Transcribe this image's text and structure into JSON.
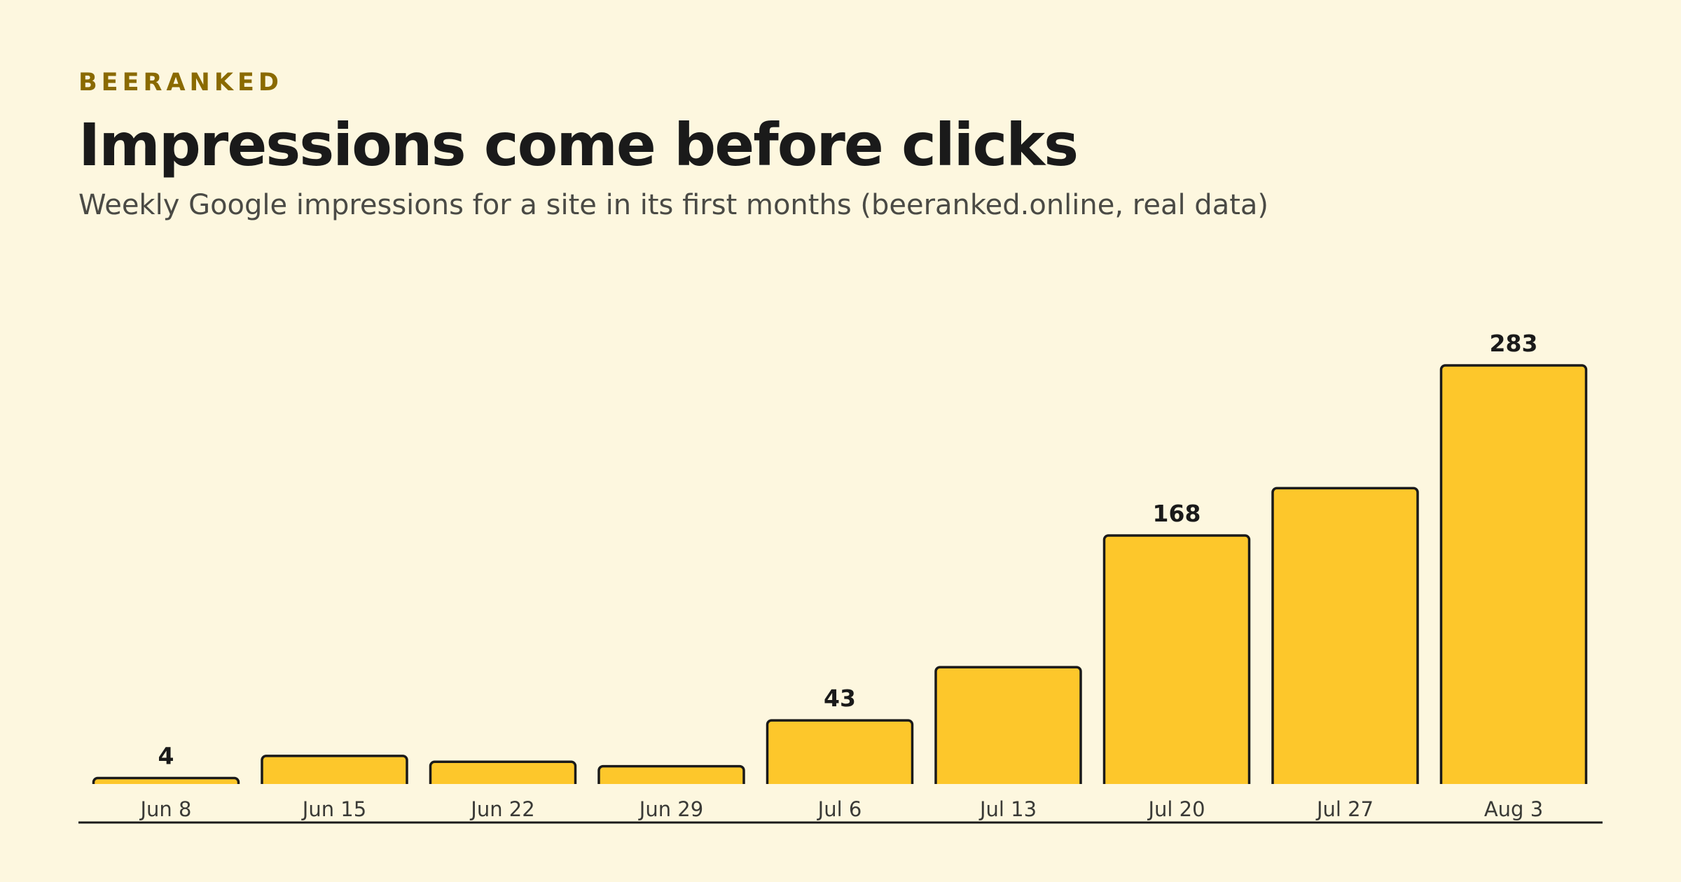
{
  "brand": "BEERANKED",
  "title": "Impressions come before clicks",
  "subtitle": "Weekly Google impressions for a site in its first months (beeranked.online, real data)",
  "colors": {
    "background": "#fdf7df",
    "bar_fill": "#fdc72b",
    "bar_stroke": "#1a1a1a",
    "brand": "#8a6a00"
  },
  "chart_data": {
    "type": "bar",
    "categories": [
      "Jun 8",
      "Jun 15",
      "Jun 22",
      "Jun 29",
      "Jul 6",
      "Jul 13",
      "Jul 20",
      "Jul 27",
      "Aug 3"
    ],
    "values": [
      4,
      19,
      15,
      12,
      43,
      79,
      168,
      200,
      283
    ],
    "data_labels": [
      "4",
      "",
      "",
      "",
      "43",
      "",
      "168",
      "",
      "283"
    ],
    "ylim": [
      0,
      283
    ],
    "grid": false,
    "legend": "none"
  }
}
